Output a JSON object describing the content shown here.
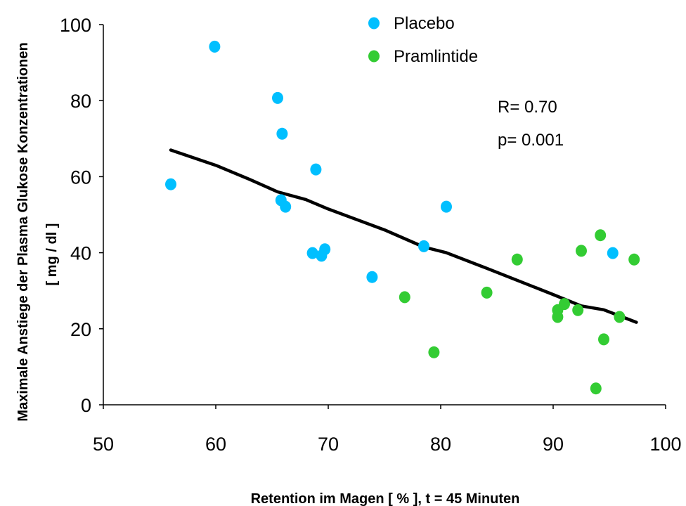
{
  "chart_data": {
    "type": "scatter",
    "title": "",
    "xlabel": "Retention im Magen [ % ], t = 45 Minuten",
    "ylabel_line1": "Maximale Anstiege der Plasma Glukose Konzentrationen",
    "ylabel_line2": "[ mg / dl ]",
    "xlim": [
      50,
      100
    ],
    "ylim": [
      0,
      100
    ],
    "xticks": [
      50,
      60,
      70,
      80,
      90,
      100
    ],
    "yticks": [
      0,
      20,
      40,
      60,
      80,
      100
    ],
    "xtick_labels": [
      "50",
      "60",
      "70",
      "80",
      "90",
      "100"
    ],
    "ytick_labels": [
      "0",
      "20",
      "40",
      "60",
      "80",
      "100"
    ],
    "grid": false,
    "legend_position": "top-center",
    "annotations": {
      "r_text": "R= 0.70",
      "p_text": "p= 0.001"
    },
    "series": [
      {
        "name": "Placebo",
        "color": "#00BFFF",
        "points": [
          [
            56.0,
            58.0
          ],
          [
            59.9,
            94.2
          ],
          [
            65.5,
            80.7
          ],
          [
            65.9,
            71.3
          ],
          [
            65.8,
            53.8
          ],
          [
            66.2,
            52.1
          ],
          [
            68.9,
            61.9
          ],
          [
            68.6,
            39.9
          ],
          [
            69.4,
            39.2
          ],
          [
            69.7,
            40.9
          ],
          [
            73.9,
            33.6
          ],
          [
            78.5,
            41.7
          ],
          [
            80.5,
            52.1
          ],
          [
            95.3,
            39.9
          ]
        ]
      },
      {
        "name": "Pramlintide",
        "color": "#33CC33",
        "points": [
          [
            76.8,
            28.3
          ],
          [
            79.4,
            13.8
          ],
          [
            84.1,
            29.5
          ],
          [
            86.8,
            38.2
          ],
          [
            90.4,
            24.9
          ],
          [
            90.4,
            23.1
          ],
          [
            91.0,
            26.5
          ],
          [
            92.2,
            24.9
          ],
          [
            92.5,
            40.5
          ],
          [
            93.8,
            4.3
          ],
          [
            94.2,
            44.6
          ],
          [
            94.5,
            17.2
          ],
          [
            95.9,
            23.1
          ],
          [
            97.2,
            38.2
          ]
        ]
      }
    ],
    "trend_line": {
      "name": "",
      "color": "#000000",
      "points": [
        [
          56.0,
          67.0
        ],
        [
          60.0,
          63.0
        ],
        [
          63.0,
          59.3
        ],
        [
          65.5,
          56.0
        ],
        [
          68.0,
          54.0
        ],
        [
          70.0,
          51.5
        ],
        [
          75.0,
          46.0
        ],
        [
          78.5,
          41.5
        ],
        [
          80.5,
          40.0
        ],
        [
          84.0,
          36.0
        ],
        [
          90.0,
          29.0
        ],
        [
          92.5,
          26.0
        ],
        [
          94.5,
          25.0
        ],
        [
          97.4,
          21.7
        ]
      ]
    }
  }
}
